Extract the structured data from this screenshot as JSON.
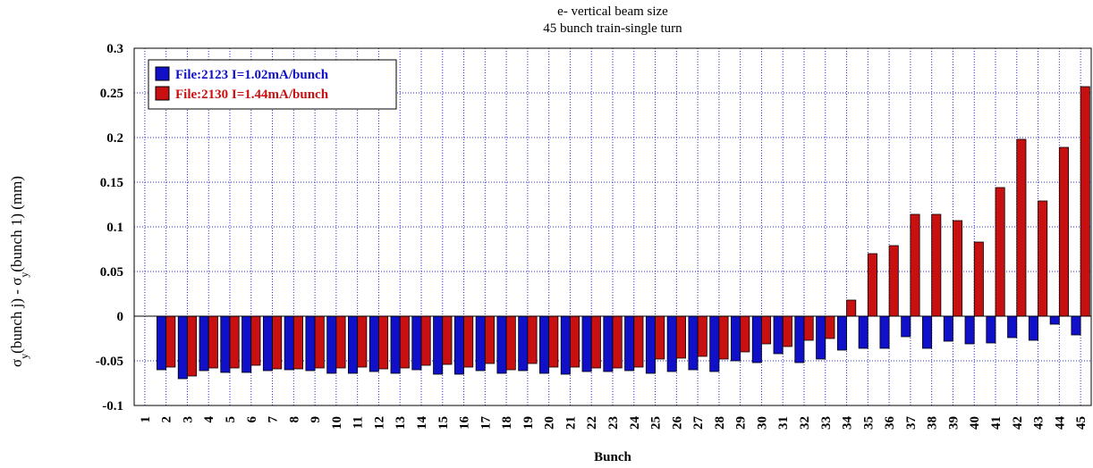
{
  "chart_data": {
    "type": "bar",
    "title": "e- vertical beam size",
    "subtitle": "45 bunch train-single turn",
    "xlabel": "Bunch",
    "ylabel": {
      "prefix": "σ",
      "sub1": "y",
      "mid": "(bunch j) - σ",
      "sub2": "y",
      "suffix": "(bunch 1) (mm)"
    },
    "ylim": [
      -0.1,
      0.3
    ],
    "yticks": [
      -0.1,
      -0.05,
      0,
      0.05,
      0.1,
      0.15,
      0.2,
      0.25,
      0.3
    ],
    "ytick_labels": [
      "-0.1",
      "-0.05",
      "0",
      "0.05",
      "0.1",
      "0.15",
      "0.2",
      "0.25",
      "0.3"
    ],
    "grid": true,
    "legend_position": "top-left",
    "categories": [
      "1",
      "2",
      "3",
      "4",
      "5",
      "6",
      "7",
      "8",
      "9",
      "10",
      "11",
      "12",
      "13",
      "14",
      "15",
      "16",
      "17",
      "18",
      "19",
      "20",
      "21",
      "22",
      "23",
      "24",
      "25",
      "26",
      "27",
      "28",
      "29",
      "30",
      "31",
      "32",
      "33",
      "34",
      "35",
      "36",
      "37",
      "38",
      "39",
      "40",
      "41",
      "42",
      "43",
      "44",
      "45"
    ],
    "series": [
      {
        "name": "File:2123 I=1.02mA/bunch",
        "color": "#1010c8",
        "values": [
          0,
          -0.06,
          -0.07,
          -0.061,
          -0.063,
          -0.063,
          -0.061,
          -0.06,
          -0.061,
          -0.064,
          -0.064,
          -0.062,
          -0.064,
          -0.06,
          -0.065,
          -0.065,
          -0.061,
          -0.064,
          -0.061,
          -0.064,
          -0.065,
          -0.062,
          -0.062,
          -0.061,
          -0.064,
          -0.062,
          -0.06,
          -0.062,
          -0.05,
          -0.052,
          -0.042,
          -0.052,
          -0.048,
          -0.038,
          -0.036,
          -0.036,
          -0.023,
          -0.036,
          -0.028,
          -0.031,
          -0.03,
          -0.024,
          -0.027,
          -0.009,
          -0.021
        ]
      },
      {
        "name": "File:2130 I=1.44mA/bunch",
        "color": "#c81010",
        "values": [
          0,
          -0.057,
          -0.067,
          -0.058,
          -0.058,
          -0.055,
          -0.059,
          -0.059,
          -0.058,
          -0.058,
          -0.057,
          -0.059,
          -0.058,
          -0.055,
          -0.054,
          -0.057,
          -0.053,
          -0.06,
          -0.053,
          -0.057,
          -0.057,
          -0.058,
          -0.058,
          -0.057,
          -0.048,
          -0.047,
          -0.045,
          -0.048,
          -0.04,
          -0.031,
          -0.034,
          -0.027,
          -0.025,
          0.018,
          0.07,
          0.079,
          0.114,
          0.114,
          0.107,
          0.083,
          0.144,
          0.198,
          0.129,
          0.189,
          0.257
        ]
      }
    ]
  }
}
